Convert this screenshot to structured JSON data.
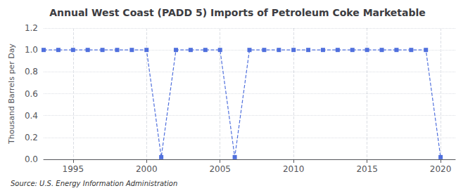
{
  "chart_data": {
    "type": "line",
    "title": "Annual West Coast (PADD 5) Imports of Petroleum Coke Marketable",
    "ylabel": "Thousand Barrels per Day",
    "source": "Source: U.S. Energy Information Administration",
    "x": [
      1993,
      1994,
      1995,
      1996,
      1997,
      1998,
      1999,
      2000,
      2001,
      2002,
      2003,
      2004,
      2005,
      2006,
      2007,
      2008,
      2009,
      2010,
      2011,
      2012,
      2013,
      2014,
      2015,
      2016,
      2017,
      2018,
      2019,
      2020
    ],
    "values": [
      1.0,
      1.0,
      1.0,
      1.0,
      1.0,
      1.0,
      1.0,
      1.0,
      0.02,
      1.0,
      1.0,
      1.0,
      1.0,
      0.02,
      1.0,
      1.0,
      1.0,
      1.0,
      1.0,
      1.0,
      1.0,
      1.0,
      1.0,
      1.0,
      1.0,
      1.0,
      1.0,
      0.02
    ],
    "xlim": [
      1993,
      2021
    ],
    "xticks": [
      1995,
      2000,
      2005,
      2010,
      2015,
      2020
    ],
    "ylim": [
      0.0,
      1.2
    ],
    "yticks": [
      {
        "value": 0,
        "label": "0.0"
      },
      0.2,
      0.4,
      0.6,
      0.8,
      {
        "value": 1,
        "label": "1.0"
      },
      1.2
    ],
    "grid": true,
    "marker": "square",
    "line_style": "dashed"
  }
}
